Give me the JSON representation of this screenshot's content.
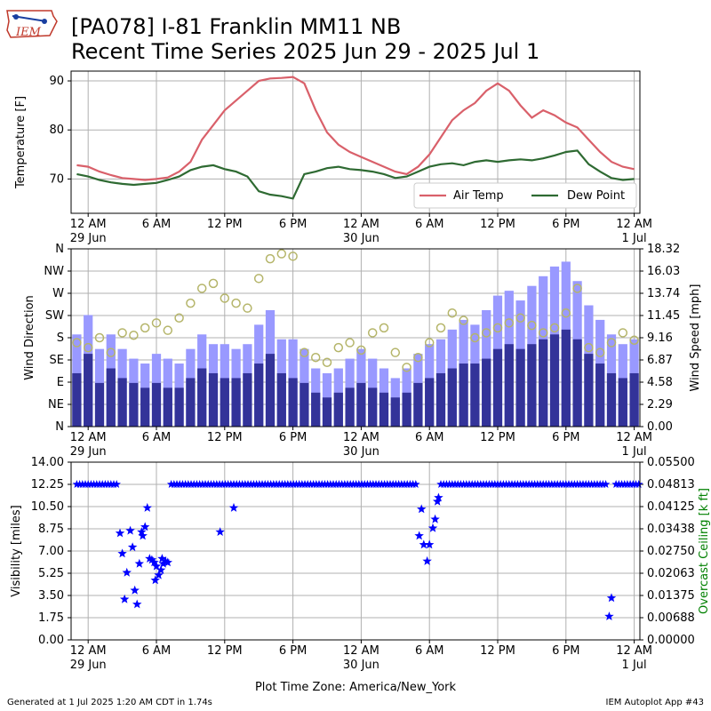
{
  "header": {
    "title_line1": "[PA078] I-81 Franklin MM11 NB",
    "title_line2": "Recent Time Series 2025 Jun 29 - 2025 Jul 1",
    "logo_text": "IEM"
  },
  "footer": {
    "generated": "Generated at 1 Jul 2025 1:20 AM CDT in 1.74s",
    "app": "IEM Autoplot App #43"
  },
  "colors": {
    "air_temp": "#d9606a",
    "dew_point": "#2e6a32",
    "wind_gust": "#9999ff",
    "wind_speed": "#333399",
    "wind_dir": "#b5b56a",
    "visibility": "#0000ff",
    "ceiling": "#008000"
  },
  "chart_data": [
    {
      "type": "line",
      "panel": "temperature",
      "ylabel": "Temperature [F]",
      "yticks": [
        "70",
        "80",
        "90"
      ],
      "ylim": [
        63,
        92
      ],
      "xlim_hours": [
        -1.5,
        48.5
      ],
      "x_hours_from_start": [
        -1,
        0,
        1,
        2,
        3,
        4,
        5,
        6,
        7,
        8,
        9,
        10,
        11,
        12,
        13,
        14,
        15,
        16,
        17,
        18,
        19,
        20,
        21,
        22,
        23,
        24,
        25,
        26,
        27,
        28,
        29,
        30,
        31,
        32,
        33,
        34,
        35,
        36,
        37,
        38,
        39,
        40,
        41,
        42,
        43,
        44,
        45,
        46,
        47,
        48
      ],
      "series": [
        {
          "name": "Air Temp",
          "values": [
            72.8,
            72.5,
            71.5,
            70.8,
            70.2,
            70.0,
            69.8,
            70.0,
            70.3,
            71.5,
            73.5,
            78.0,
            81.0,
            84.0,
            86.0,
            88.0,
            90.0,
            90.5,
            90.6,
            90.8,
            89.5,
            84.0,
            79.5,
            77.0,
            75.5,
            74.5,
            73.5,
            72.5,
            71.5,
            71.0,
            72.5,
            75.0,
            78.5,
            82.0,
            84.0,
            85.5,
            88.0,
            89.5,
            88.0,
            85.0,
            82.5,
            84.0,
            83.0,
            81.5,
            80.5,
            78.0,
            75.5,
            73.5,
            72.5,
            72.0
          ]
        },
        {
          "name": "Dew Point",
          "values": [
            71.0,
            70.5,
            69.8,
            69.3,
            69.0,
            68.8,
            69.0,
            69.2,
            69.8,
            70.5,
            71.8,
            72.5,
            72.8,
            72.0,
            71.5,
            70.5,
            67.5,
            66.8,
            66.5,
            66.0,
            71.0,
            71.5,
            72.2,
            72.5,
            72.0,
            71.8,
            71.5,
            71.0,
            70.2,
            70.5,
            71.5,
            72.5,
            73.0,
            73.2,
            72.8,
            73.5,
            73.8,
            73.5,
            73.8,
            74.0,
            73.8,
            74.2,
            74.8,
            75.5,
            75.8,
            73.0,
            71.5,
            70.2,
            69.8,
            70.0
          ]
        }
      ],
      "legend": "lower-right"
    },
    {
      "type": "bar",
      "panel": "wind",
      "ylabel_left": "Wind Direction",
      "ylabel_right": "Wind Speed [mph]",
      "direction_ticks": [
        "N",
        "NE",
        "E",
        "SE",
        "S",
        "SW",
        "W",
        "NW",
        "N"
      ],
      "speed_ticks": [
        "0.00",
        "2.29",
        "4.58",
        "6.87",
        "9.16",
        "11.45",
        "13.74",
        "16.03",
        "18.32"
      ],
      "speed_lim": [
        0,
        18.32
      ],
      "x_hours_from_start": [
        -1,
        0,
        1,
        2,
        3,
        4,
        5,
        6,
        7,
        8,
        9,
        10,
        11,
        12,
        13,
        14,
        15,
        16,
        17,
        18,
        19,
        20,
        21,
        22,
        23,
        24,
        25,
        26,
        27,
        28,
        29,
        30,
        31,
        32,
        33,
        34,
        35,
        36,
        37,
        38,
        39,
        40,
        41,
        42,
        43,
        44,
        45,
        46,
        47,
        48
      ],
      "gust_mph": [
        9.5,
        11.5,
        8.0,
        9.5,
        8.0,
        7.0,
        6.5,
        7.5,
        7.0,
        6.5,
        8.0,
        9.5,
        8.5,
        8.5,
        8.0,
        8.5,
        10.5,
        12.0,
        9.0,
        9.0,
        8.0,
        6.0,
        5.5,
        6.0,
        7.0,
        8.0,
        7.0,
        6.0,
        5.0,
        6.0,
        7.5,
        8.5,
        9.0,
        10.0,
        11.0,
        10.5,
        12.0,
        13.5,
        14.0,
        13.0,
        14.5,
        15.5,
        16.5,
        17.0,
        15.0,
        12.5,
        11.0,
        9.5,
        8.5,
        9.0
      ],
      "speed_mph": [
        5.5,
        7.5,
        4.5,
        6.0,
        5.0,
        4.5,
        4.0,
        4.5,
        4.0,
        4.0,
        5.0,
        6.0,
        5.5,
        5.0,
        5.0,
        5.5,
        6.5,
        7.5,
        5.5,
        5.0,
        4.5,
        3.5,
        3.0,
        3.5,
        4.0,
        4.5,
        4.0,
        3.5,
        3.0,
        3.5,
        4.5,
        5.0,
        5.5,
        6.0,
        6.5,
        6.5,
        7.0,
        8.0,
        8.5,
        8.0,
        8.5,
        9.0,
        9.5,
        10.0,
        9.0,
        7.5,
        6.5,
        5.5,
        5.0,
        5.5
      ],
      "direction_deg": [
        170,
        160,
        180,
        150,
        190,
        185,
        200,
        210,
        195,
        220,
        250,
        280,
        290,
        260,
        250,
        240,
        300,
        340,
        350,
        345,
        150,
        140,
        130,
        160,
        170,
        155,
        190,
        200,
        150,
        120,
        140,
        170,
        200,
        230,
        215,
        180,
        190,
        200,
        210,
        220,
        205,
        190,
        200,
        230,
        280,
        160,
        150,
        170,
        190,
        175
      ]
    },
    {
      "type": "scatter",
      "panel": "visibility",
      "ylabel_left": "Visibility [miles]",
      "ylabel_right": "Overcast Ceiling [k ft]",
      "vis_ticks": [
        "0.00",
        "1.75",
        "3.50",
        "5.25",
        "7.00",
        "8.75",
        "10.50",
        "12.25",
        "14.00"
      ],
      "ceiling_ticks": [
        "0.00000",
        "0.00688",
        "0.01375",
        "0.02063",
        "0.02750",
        "0.03438",
        "0.04125",
        "0.04813",
        "0.05500"
      ],
      "ylim": [
        0,
        14
      ],
      "points": [
        {
          "x": 2.8,
          "y": 8.4
        },
        {
          "x": 3.0,
          "y": 6.8
        },
        {
          "x": 3.2,
          "y": 3.2
        },
        {
          "x": 3.4,
          "y": 5.3
        },
        {
          "x": 3.7,
          "y": 8.6
        },
        {
          "x": 3.9,
          "y": 7.3
        },
        {
          "x": 4.1,
          "y": 3.9
        },
        {
          "x": 4.3,
          "y": 2.8
        },
        {
          "x": 4.5,
          "y": 6.0
        },
        {
          "x": 4.7,
          "y": 8.5
        },
        {
          "x": 4.8,
          "y": 8.2
        },
        {
          "x": 5.0,
          "y": 8.9
        },
        {
          "x": 5.2,
          "y": 10.4
        },
        {
          "x": 5.4,
          "y": 6.4
        },
        {
          "x": 5.6,
          "y": 6.3
        },
        {
          "x": 5.8,
          "y": 6.1
        },
        {
          "x": 5.9,
          "y": 4.7
        },
        {
          "x": 6.0,
          "y": 5.8
        },
        {
          "x": 6.2,
          "y": 5.1
        },
        {
          "x": 6.4,
          "y": 5.5
        },
        {
          "x": 6.5,
          "y": 6.4
        },
        {
          "x": 6.6,
          "y": 6.0
        },
        {
          "x": 6.8,
          "y": 6.2
        },
        {
          "x": 7.0,
          "y": 6.1
        },
        {
          "x": 11.6,
          "y": 8.5
        },
        {
          "x": 12.8,
          "y": 10.4
        },
        {
          "x": 29.1,
          "y": 8.2
        },
        {
          "x": 29.3,
          "y": 10.3
        },
        {
          "x": 29.5,
          "y": 7.5
        },
        {
          "x": 29.8,
          "y": 6.2
        },
        {
          "x": 30.0,
          "y": 7.5
        },
        {
          "x": 30.3,
          "y": 8.8
        },
        {
          "x": 30.5,
          "y": 9.5
        },
        {
          "x": 30.7,
          "y": 10.9
        },
        {
          "x": 30.8,
          "y": 11.2
        },
        {
          "x": 45.8,
          "y": 1.85
        },
        {
          "x": 46.0,
          "y": 3.3
        }
      ],
      "ceiling_segments_hours": [
        [
          -1,
          2.6
        ],
        [
          7.3,
          28.8
        ],
        [
          31.0,
          45.6
        ],
        [
          46.4,
          48.5
        ]
      ],
      "ceiling_constant_value": 0.04813
    }
  ],
  "x_axis": {
    "tick_labels": [
      "12 AM",
      "6 AM",
      "12 PM",
      "6 PM",
      "12 AM",
      "6 AM",
      "12 PM",
      "6 PM",
      "12 AM"
    ],
    "tick_hours": [
      0,
      6,
      12,
      18,
      24,
      30,
      36,
      42,
      48
    ],
    "date_labels": [
      {
        "hour": 0,
        "text": "29 Jun"
      },
      {
        "hour": 24,
        "text": "30 Jun"
      },
      {
        "hour": 48,
        "text": "1 Jul"
      }
    ],
    "timezone_label": "Plot Time Zone: America/New_York"
  }
}
